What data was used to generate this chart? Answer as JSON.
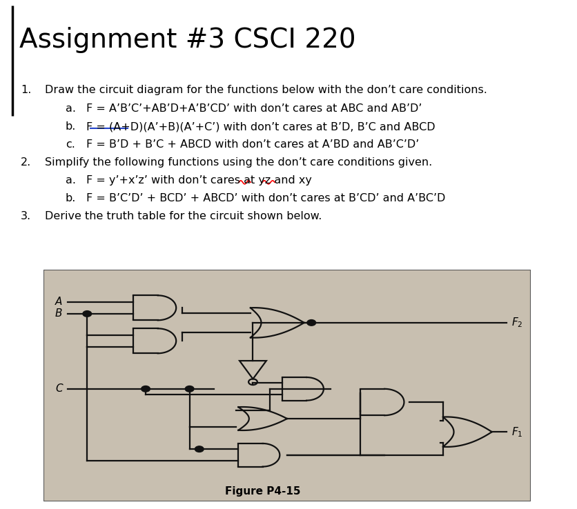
{
  "title": "Assignment #3 CSCI 220",
  "bg_color": "#ffffff",
  "circuit_bg": "#c8bfb0",
  "line_color": "#111111",
  "fig_width": 8.36,
  "fig_height": 7.38,
  "dpi": 100,
  "title_fontsize": 28,
  "body_fontsize": 11.5,
  "figure_label": "Figure P4-15",
  "text_section": {
    "line1_num": "1.",
    "line1_txt": "Draw the circuit diagram for the functions below with the don’t care conditions.",
    "line1a": "F = A’B’C’+AB’D+A’B’CD’ with don’t cares at ABC and AB’D’",
    "line1b": "F = (A+D)(A’+B)(A’+C’) with don’t cares at B’D, B’C and ABCD",
    "line1c": "F = B’D + B’C + ABCD with don’t cares at A’BD and AB’C’D’",
    "line2_num": "2.",
    "line2_txt": "Simplify the following functions using the don’t care conditions given.",
    "line2a": "F = y’+x’z’ with don’t cares at yz and xy",
    "line2b": "F = B’C’D’ + BCD’ + ABCD’ with don’t cares at B’CD’ and A’BC’D",
    "line3_num": "3.",
    "line3_txt": "Derive the truth table for the circuit shown below."
  }
}
